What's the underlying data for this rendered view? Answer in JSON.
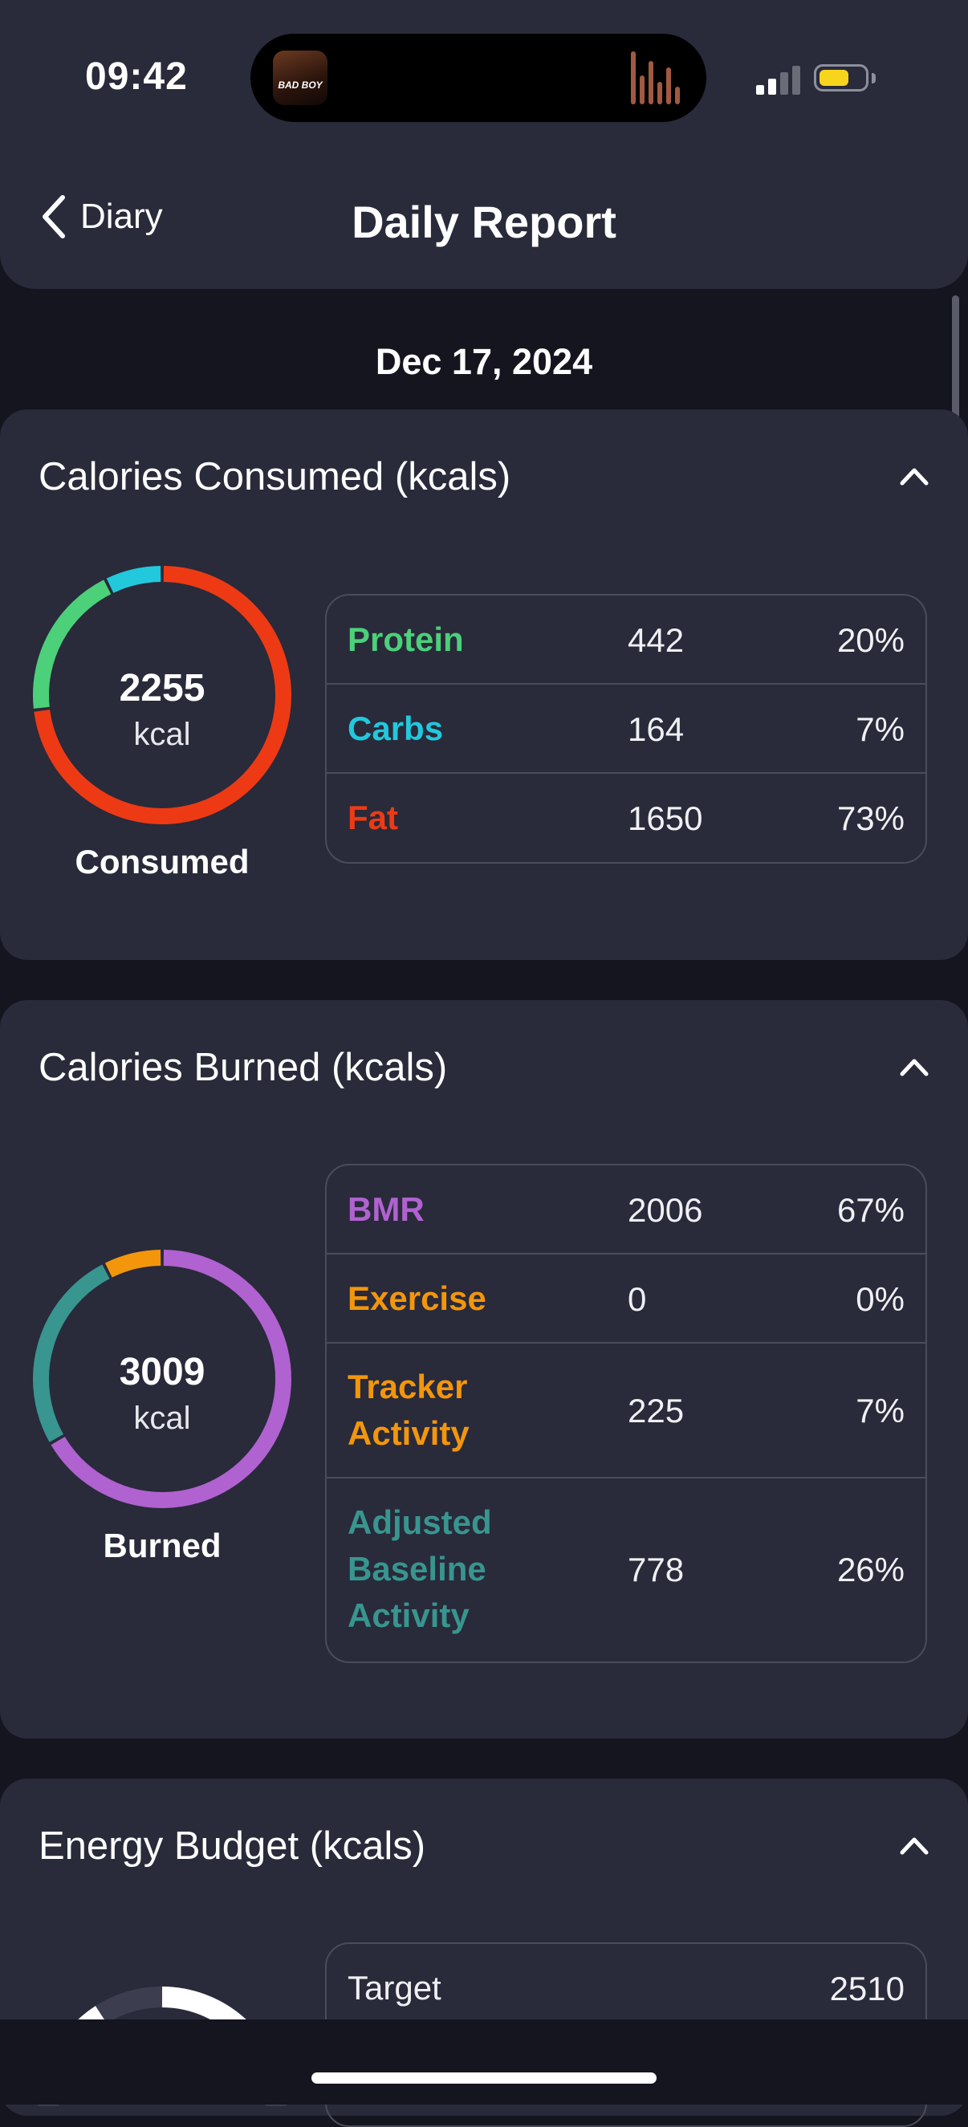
{
  "status_bar": {
    "time": "09:42",
    "album_text": "BAD BOY"
  },
  "nav": {
    "back_label": "Diary",
    "title": "Daily Report"
  },
  "date": "Dec 17, 2024",
  "colors": {
    "protein": "#4cd07a",
    "carbs": "#22c8dc",
    "fat": "#ee3a14",
    "bmr": "#b062d0",
    "exercise": "#f3960c",
    "tracker": "#f3960c",
    "adjusted": "#38958f"
  },
  "consumed": {
    "title": "Calories Consumed (kcals)",
    "total": "2255",
    "unit": "kcal",
    "caption": "Consumed",
    "rows": [
      {
        "label": "Protein",
        "value": "442",
        "percent": "20%"
      },
      {
        "label": "Carbs",
        "value": "164",
        "percent": "7%"
      },
      {
        "label": "Fat",
        "value": "1650",
        "percent": "73%"
      }
    ]
  },
  "burned": {
    "title": "Calories Burned (kcals)",
    "total": "3009",
    "unit": "kcal",
    "caption": "Burned",
    "rows": [
      {
        "label": "BMR",
        "value": "2006",
        "percent": "67%"
      },
      {
        "label": "Exercise",
        "value": "0",
        "percent": "0%"
      },
      {
        "label": "Tracker Activity",
        "value": "225",
        "percent": "7%"
      },
      {
        "label": "Adjusted Baseline Activity",
        "value": "778",
        "percent": "26%"
      }
    ]
  },
  "budget": {
    "title": "Energy Budget (kcals)",
    "rows": [
      {
        "label": "Target",
        "value": "2510"
      }
    ]
  }
}
